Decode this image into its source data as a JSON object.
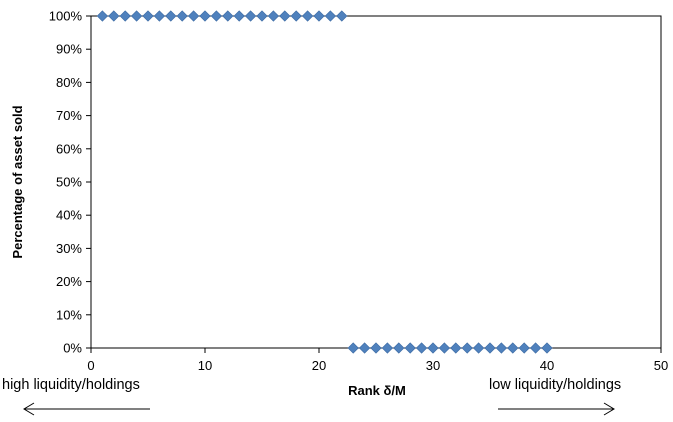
{
  "chart_data": {
    "type": "scatter",
    "xlabel": "Rank δ/M",
    "ylabel": "Percentage of asset sold",
    "xlim": [
      0,
      50
    ],
    "ylim": [
      0,
      1
    ],
    "x_ticks": [
      "0",
      "10",
      "20",
      "30",
      "40",
      "50"
    ],
    "y_ticks": [
      "0%",
      "10%",
      "20%",
      "30%",
      "40%",
      "50%",
      "60%",
      "70%",
      "80%",
      "90%",
      "100%"
    ],
    "grid": false,
    "marker": "diamond",
    "series": [
      {
        "color": "#4f81bd",
        "x": [
          1,
          2,
          3,
          4,
          5,
          6,
          7,
          8,
          9,
          10,
          11,
          12,
          13,
          14,
          15,
          16,
          17,
          18,
          19,
          20,
          21,
          22,
          23,
          24,
          25,
          26,
          27,
          28,
          29,
          30,
          31,
          32,
          33,
          34,
          35,
          36,
          37,
          38,
          39,
          40
        ],
        "y": [
          1,
          1,
          1,
          1,
          1,
          1,
          1,
          1,
          1,
          1,
          1,
          1,
          1,
          1,
          1,
          1,
          1,
          1,
          1,
          1,
          1,
          1,
          0,
          0,
          0,
          0,
          0,
          0,
          0,
          0,
          0,
          0,
          0,
          0,
          0,
          0,
          0,
          0,
          0,
          0
        ]
      }
    ],
    "annotations": {
      "left": "high liquidity/holdings",
      "right": "low liquidity/holdings"
    }
  }
}
